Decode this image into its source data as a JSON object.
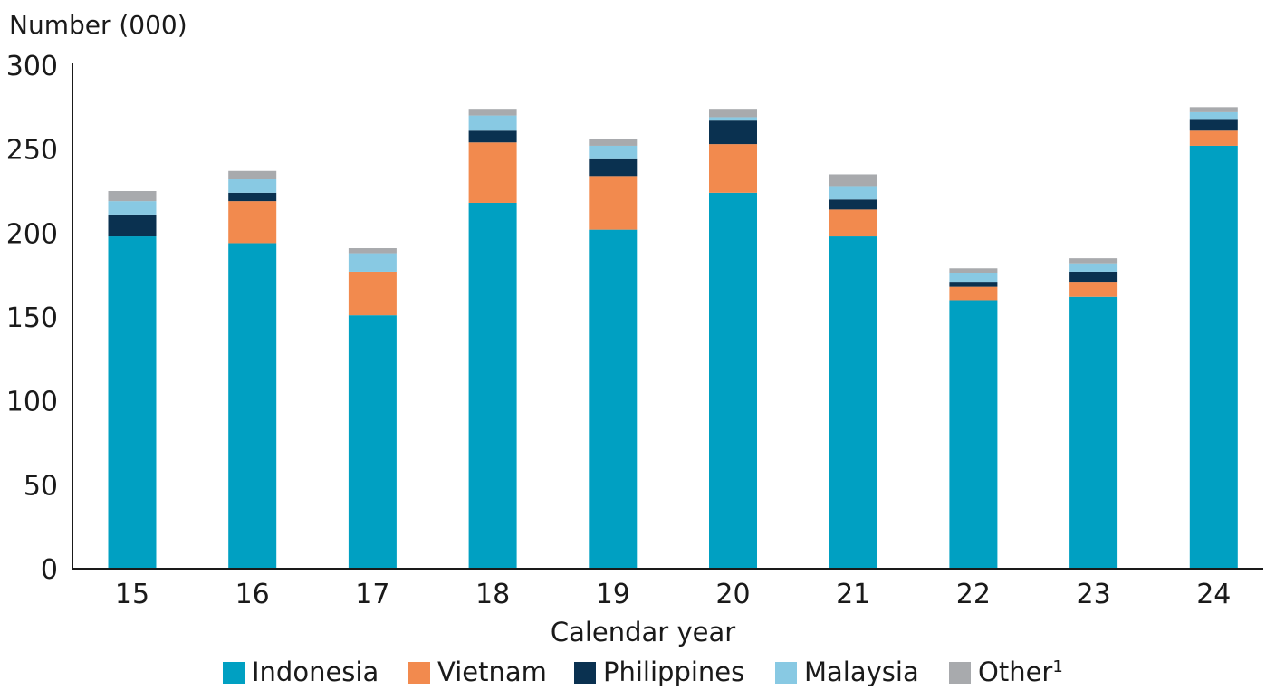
{
  "chart_data": {
    "type": "bar",
    "stacked": true,
    "ylabel": "Number (000)",
    "xlabel": "Calendar year",
    "ylim": [
      0,
      300
    ],
    "yticks": [
      "0",
      "50",
      "100",
      "150",
      "200",
      "250",
      "300"
    ],
    "categories": [
      "15",
      "16",
      "17",
      "18",
      "19",
      "20",
      "21",
      "22",
      "23",
      "24"
    ],
    "series": [
      {
        "name": "Indonesia",
        "color": "#00A0C2",
        "values": [
          198,
          194,
          151,
          218,
          202,
          224,
          198,
          160,
          162,
          252
        ]
      },
      {
        "name": "Vietnam",
        "color": "#F28A4E",
        "values": [
          0,
          25,
          26,
          36,
          32,
          29,
          16,
          8,
          9,
          9
        ]
      },
      {
        "name": "Philippines",
        "color": "#0A3150",
        "values": [
          13,
          5,
          0,
          7,
          10,
          14,
          6,
          3,
          6,
          7
        ]
      },
      {
        "name": "Malaysia",
        "color": "#88C9E3",
        "values": [
          8,
          8,
          11,
          9,
          8,
          2,
          8,
          5,
          5,
          4
        ]
      },
      {
        "name": "Other",
        "color": "#A8AAAD",
        "values": [
          6,
          5,
          3,
          4,
          4,
          5,
          7,
          3,
          3,
          3
        ]
      }
    ],
    "legend": {
      "placement": "bottom",
      "labels": [
        "Indonesia",
        "Vietnam",
        "Philippines",
        "Malaysia",
        "Other"
      ],
      "footnote_marker": "1"
    },
    "grid": false
  }
}
